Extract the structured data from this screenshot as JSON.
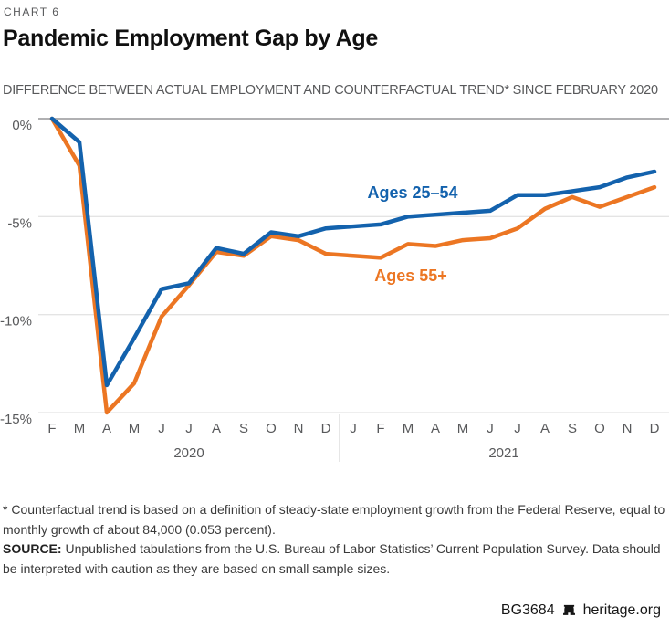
{
  "header": {
    "eyebrow": "CHART 6",
    "title": "Pandemic Employment Gap by Age",
    "subtitle": "DIFFERENCE BETWEEN ACTUAL EMPLOYMENT AND COUNTERFACTUAL TREND* SINCE FEBRUARY 2020"
  },
  "chart_data": {
    "type": "line",
    "x": [
      "F",
      "M",
      "A",
      "M",
      "J",
      "J",
      "A",
      "S",
      "O",
      "N",
      "D",
      "J",
      "F",
      "M",
      "A",
      "M",
      "J",
      "J",
      "A",
      "S",
      "O",
      "N",
      "D"
    ],
    "year_groups": [
      {
        "label": "2020",
        "start": 0,
        "end": 10
      },
      {
        "label": "2021",
        "start": 11,
        "end": 22
      }
    ],
    "y_ticks": [
      {
        "value": 0,
        "label": "0%"
      },
      {
        "value": -5,
        "label": "-5%"
      },
      {
        "value": -10,
        "label": "-10%"
      },
      {
        "value": -15,
        "label": "-15%"
      }
    ],
    "ylim": [
      -15,
      0
    ],
    "unit": "percent",
    "grid": "horizontal",
    "legend_position": "inline-labels",
    "series": [
      {
        "name": "Ages 25–54",
        "color": "#1362ad",
        "values": [
          0,
          -1.2,
          -13.6,
          -11.2,
          -8.7,
          -8.4,
          -6.6,
          -6.9,
          -5.8,
          -6.0,
          -5.6,
          -5.5,
          -5.4,
          -5.0,
          -4.9,
          -4.8,
          -4.7,
          -3.9,
          -3.9,
          -3.7,
          -3.5,
          -3.0,
          -2.7
        ]
      },
      {
        "name": "Ages 55+",
        "color": "#ec7623",
        "values": [
          0,
          -2.4,
          -15.0,
          -13.5,
          -10.1,
          -8.5,
          -6.8,
          -7.0,
          -6.0,
          -6.2,
          -6.9,
          -7.0,
          -7.1,
          -6.4,
          -6.5,
          -6.2,
          -6.1,
          -5.6,
          -4.6,
          -4.0,
          -4.5,
          -4.0,
          -3.5
        ]
      }
    ]
  },
  "footnote": {
    "note": "* Counterfactual trend is based on a definition of steady-state employment growth from the Federal Reserve, equal to monthly growth of about 84,000 (0.053 percent).",
    "source_label": "SOURCE:",
    "source_text": " Unpublished tabulations from the U.S. Bureau of Labor Statistics’ Current Population Survey. Data should be interpreted with caution as they are based on small sample sizes."
  },
  "footer": {
    "doc_id": "BG3684",
    "site": "heritage.org",
    "icon": "liberty-bell-icon"
  }
}
